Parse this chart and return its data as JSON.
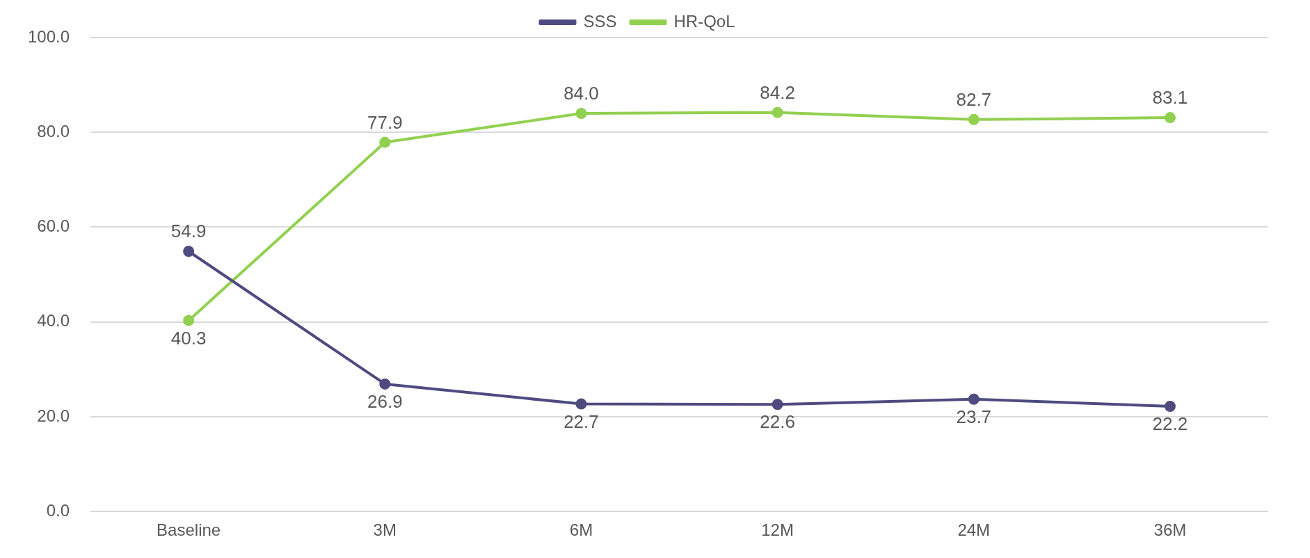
{
  "chart_data": {
    "type": "line",
    "categories": [
      "Baseline",
      "3M",
      "6M",
      "12M",
      "24M",
      "36M"
    ],
    "series": [
      {
        "name": "SSS",
        "color": "#4f4b80",
        "values": [
          54.9,
          26.9,
          22.7,
          22.6,
          23.7,
          22.2
        ],
        "value_labels": [
          "54.9",
          "26.9",
          "22.7",
          "22.6",
          "23.7",
          "22.2"
        ]
      },
      {
        "name": "HR-QoL",
        "color": "#92d050",
        "values": [
          40.3,
          77.9,
          84.0,
          84.2,
          82.7,
          83.1
        ],
        "value_labels": [
          "40.3",
          "77.9",
          "84.0",
          "84.2",
          "82.7",
          "83.1"
        ]
      }
    ],
    "ylim": [
      0,
      100
    ],
    "yticks": [
      {
        "value": 0,
        "label": "0.0"
      },
      {
        "value": 20,
        "label": "20.0"
      },
      {
        "value": 40,
        "label": "40.0"
      },
      {
        "value": 60,
        "label": "60.0"
      },
      {
        "value": 80,
        "label": "80.0"
      },
      {
        "value": 100,
        "label": "100.0"
      }
    ],
    "grid": "y",
    "legend": "top",
    "marker": "circle",
    "line_style": "solid"
  }
}
